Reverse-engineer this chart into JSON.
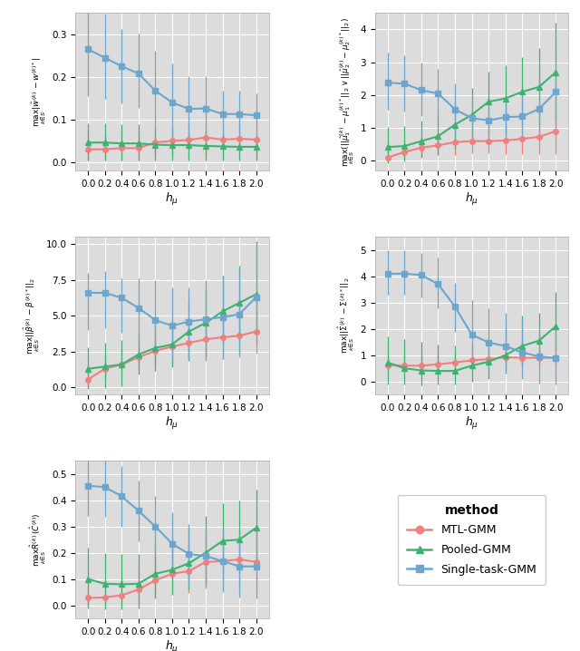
{
  "x": [
    0.0,
    0.2,
    0.4,
    0.6,
    0.8,
    1.0,
    1.2,
    1.4,
    1.6,
    1.8,
    2.0
  ],
  "colors": {
    "mtl": "#F08080",
    "pooled": "#3CB371",
    "single": "#6CA6CD"
  },
  "panel1": {
    "mtl_mean": [
      0.03,
      0.03,
      0.033,
      0.033,
      0.046,
      0.05,
      0.052,
      0.058,
      0.053,
      0.055,
      0.053
    ],
    "mtl_lo": [
      0.005,
      0.005,
      0.005,
      0.005,
      0.015,
      0.015,
      0.015,
      0.015,
      0.01,
      0.015,
      0.012
    ],
    "mtl_hi": [
      0.07,
      0.068,
      0.072,
      0.07,
      0.085,
      0.088,
      0.088,
      0.092,
      0.09,
      0.092,
      0.092
    ],
    "pooled_mean": [
      0.046,
      0.046,
      0.044,
      0.044,
      0.041,
      0.04,
      0.04,
      0.038,
      0.037,
      0.036,
      0.036
    ],
    "pooled_lo": [
      0.003,
      0.003,
      0.003,
      0.003,
      0.005,
      0.005,
      0.005,
      0.005,
      0.005,
      0.005,
      0.005
    ],
    "pooled_hi": [
      0.092,
      0.092,
      0.088,
      0.088,
      0.078,
      0.078,
      0.073,
      0.07,
      0.068,
      0.062,
      0.06
    ],
    "single_mean": [
      0.265,
      0.245,
      0.225,
      0.208,
      0.168,
      0.14,
      0.125,
      0.126,
      0.113,
      0.113,
      0.11
    ],
    "single_lo": [
      0.155,
      0.148,
      0.138,
      0.128,
      0.068,
      0.058,
      0.048,
      0.048,
      0.058,
      0.053,
      0.052
    ],
    "single_hi": [
      0.372,
      0.348,
      0.312,
      0.302,
      0.262,
      0.232,
      0.202,
      0.202,
      0.168,
      0.168,
      0.162
    ],
    "ylim": [
      -0.02,
      0.35
    ],
    "yticks": [
      0.0,
      0.1,
      0.2,
      0.3
    ],
    "ylabel": "max_{{k\\in S}}|\\hat{{w}}^{{(k)}}-w^{{(k)*}}|"
  },
  "panel2": {
    "mtl_mean": [
      0.1,
      0.27,
      0.4,
      0.47,
      0.57,
      0.6,
      0.6,
      0.62,
      0.67,
      0.73,
      0.9
    ],
    "mtl_lo": [
      0.0,
      0.05,
      0.13,
      0.18,
      0.18,
      0.23,
      0.23,
      0.2,
      0.2,
      0.2,
      0.2
    ],
    "mtl_hi": [
      0.33,
      0.63,
      0.78,
      0.88,
      0.98,
      0.98,
      0.98,
      1.08,
      1.13,
      1.18,
      1.53
    ],
    "pooled_mean": [
      0.42,
      0.45,
      0.6,
      0.75,
      1.1,
      1.4,
      1.8,
      1.9,
      2.1,
      2.25,
      2.7
    ],
    "pooled_lo": [
      -0.07,
      -0.02,
      0.08,
      0.18,
      0.38,
      0.58,
      0.88,
      0.88,
      1.08,
      1.08,
      1.28
    ],
    "pooled_hi": [
      1.02,
      1.07,
      1.22,
      1.42,
      1.82,
      2.22,
      2.72,
      2.92,
      3.17,
      3.42,
      4.22
    ],
    "single_mean": [
      2.38,
      2.35,
      2.15,
      2.05,
      1.57,
      1.3,
      1.23,
      1.33,
      1.35,
      1.58,
      2.1
    ],
    "single_lo": [
      1.55,
      1.5,
      1.35,
      1.3,
      0.8,
      0.65,
      0.6,
      0.65,
      0.62,
      0.8,
      1.0
    ],
    "single_hi": [
      3.3,
      3.2,
      3.0,
      2.8,
      2.35,
      2.0,
      1.9,
      2.0,
      2.1,
      2.5,
      3.2
    ],
    "ylim": [
      -0.3,
      4.5
    ],
    "yticks": [
      0,
      1,
      2,
      3,
      4
    ],
    "ylabel": "max_{{k\\in S}}(||\\hat{{\\mu}}_1^{{(k)}}-\\mu_1^{{(k)*}}||_2\\vee||\\hat{{\\mu}}_2^{{(k)}}-\\mu_2^{{(k)*}}||_2)"
  },
  "panel3": {
    "mtl_mean": [
      0.55,
      1.3,
      1.6,
      2.1,
      2.55,
      2.85,
      3.1,
      3.35,
      3.5,
      3.6,
      3.9
    ],
    "mtl_lo": [
      0.0,
      0.5,
      0.78,
      1.18,
      1.48,
      1.68,
      1.98,
      1.88,
      1.98,
      2.08,
      2.33
    ],
    "mtl_hi": [
      1.48,
      2.28,
      2.68,
      3.28,
      3.68,
      4.08,
      4.38,
      4.78,
      5.08,
      5.18,
      5.48
    ],
    "pooled_mean": [
      1.3,
      1.45,
      1.6,
      2.3,
      2.75,
      3.0,
      3.9,
      4.5,
      5.3,
      5.9,
      6.5
    ],
    "pooled_lo": [
      -0.12,
      -0.02,
      0.08,
      0.88,
      1.18,
      1.38,
      1.88,
      2.18,
      2.98,
      3.28,
      3.98
    ],
    "pooled_hi": [
      2.82,
      3.12,
      3.32,
      3.82,
      4.42,
      4.72,
      6.02,
      6.82,
      7.82,
      8.52,
      10.22
    ],
    "single_mean": [
      6.6,
      6.6,
      6.25,
      5.55,
      4.7,
      4.3,
      4.6,
      4.75,
      4.9,
      5.1,
      6.3
    ],
    "single_lo": [
      4.0,
      4.1,
      3.8,
      3.1,
      2.2,
      2.0,
      2.0,
      2.0,
      2.0,
      2.2,
      3.0
    ],
    "single_hi": [
      8.0,
      8.1,
      7.6,
      7.6,
      7.5,
      7.0,
      7.0,
      7.5,
      7.8,
      8.2,
      10.2
    ],
    "ylim": [
      -0.5,
      10.5
    ],
    "yticks": [
      0.0,
      2.5,
      5.0,
      7.5,
      10.0
    ],
    "ylabel": "max_{{k\\in S}}||\\hat{{\\beta}}^{{(k)}}-\\beta^{{(k)*}}||_2"
  },
  "panel4": {
    "mtl_mean": [
      0.62,
      0.6,
      0.6,
      0.65,
      0.72,
      0.8,
      0.85,
      0.92,
      0.9,
      0.9,
      0.9
    ],
    "mtl_lo": [
      0.4,
      0.38,
      0.38,
      0.43,
      0.5,
      0.56,
      0.6,
      0.65,
      0.62,
      0.6,
      0.6
    ],
    "mtl_hi": [
      1.0,
      0.98,
      0.98,
      1.03,
      1.1,
      1.18,
      1.22,
      1.38,
      1.38,
      1.38,
      1.35
    ],
    "pooled_mean": [
      0.72,
      0.5,
      0.42,
      0.4,
      0.4,
      0.6,
      0.75,
      1.0,
      1.35,
      1.55,
      2.1
    ],
    "pooled_lo": [
      -0.1,
      -0.12,
      -0.14,
      -0.12,
      -0.12,
      -0.02,
      0.1,
      0.3,
      0.6,
      0.8,
      1.2
    ],
    "pooled_hi": [
      1.72,
      1.62,
      1.52,
      1.4,
      1.38,
      1.4,
      1.6,
      2.0,
      2.5,
      2.6,
      3.4
    ],
    "single_mean": [
      4.1,
      4.1,
      4.05,
      3.7,
      2.85,
      1.78,
      1.48,
      1.35,
      1.1,
      0.95,
      0.9
    ],
    "single_lo": [
      3.3,
      3.3,
      3.2,
      2.8,
      1.9,
      0.78,
      0.48,
      0.33,
      0.1,
      -0.07,
      -0.1
    ],
    "single_hi": [
      5.0,
      5.0,
      4.9,
      4.7,
      3.75,
      3.1,
      2.8,
      2.6,
      2.35,
      2.1,
      1.9
    ],
    "ylim": [
      -0.5,
      5.5
    ],
    "yticks": [
      0,
      1,
      2,
      3,
      4,
      5
    ],
    "ylabel": "max_{{k\\in S}}||\\hat{{\\Sigma}}^{{(k)}}-\\Sigma^{{(k)*}}||_2"
  },
  "panel5": {
    "mtl_mean": [
      0.028,
      0.03,
      0.038,
      0.06,
      0.095,
      0.12,
      0.13,
      0.165,
      0.168,
      0.175,
      0.165
    ],
    "mtl_lo": [
      0.0,
      0.0,
      0.0,
      0.01,
      0.03,
      0.045,
      0.048,
      0.065,
      0.06,
      0.06,
      0.05
    ],
    "mtl_hi": [
      0.075,
      0.095,
      0.11,
      0.155,
      0.195,
      0.23,
      0.245,
      0.275,
      0.275,
      0.285,
      0.28
    ],
    "pooled_mean": [
      0.1,
      0.082,
      0.08,
      0.082,
      0.12,
      0.135,
      0.16,
      0.2,
      0.245,
      0.25,
      0.295
    ],
    "pooled_lo": [
      -0.01,
      -0.015,
      -0.015,
      -0.01,
      0.025,
      0.04,
      0.06,
      0.085,
      0.12,
      0.12,
      0.155
    ],
    "pooled_hi": [
      0.22,
      0.2,
      0.195,
      0.195,
      0.24,
      0.265,
      0.295,
      0.34,
      0.39,
      0.4,
      0.44
    ],
    "single_mean": [
      0.455,
      0.45,
      0.415,
      0.36,
      0.3,
      0.235,
      0.195,
      0.188,
      0.168,
      0.148,
      0.148
    ],
    "single_lo": [
      0.34,
      0.338,
      0.298,
      0.245,
      0.185,
      0.118,
      0.078,
      0.07,
      0.05,
      0.028,
      0.025
    ],
    "single_hi": [
      0.565,
      0.565,
      0.53,
      0.475,
      0.415,
      0.355,
      0.31,
      0.31,
      0.29,
      0.27,
      0.275
    ],
    "ylim": [
      -0.05,
      0.55
    ],
    "yticks": [
      0.0,
      0.1,
      0.2,
      0.3,
      0.4,
      0.5
    ],
    "ylabel": "max_{{k\\in S}}\\hat{{R}}^{{(k)}}(\\hat{{C}}^{{(k)}})"
  },
  "xlabel": "h_\\mu",
  "bg_color": "#DCDCDC",
  "grid_color": "#FFFFFF"
}
